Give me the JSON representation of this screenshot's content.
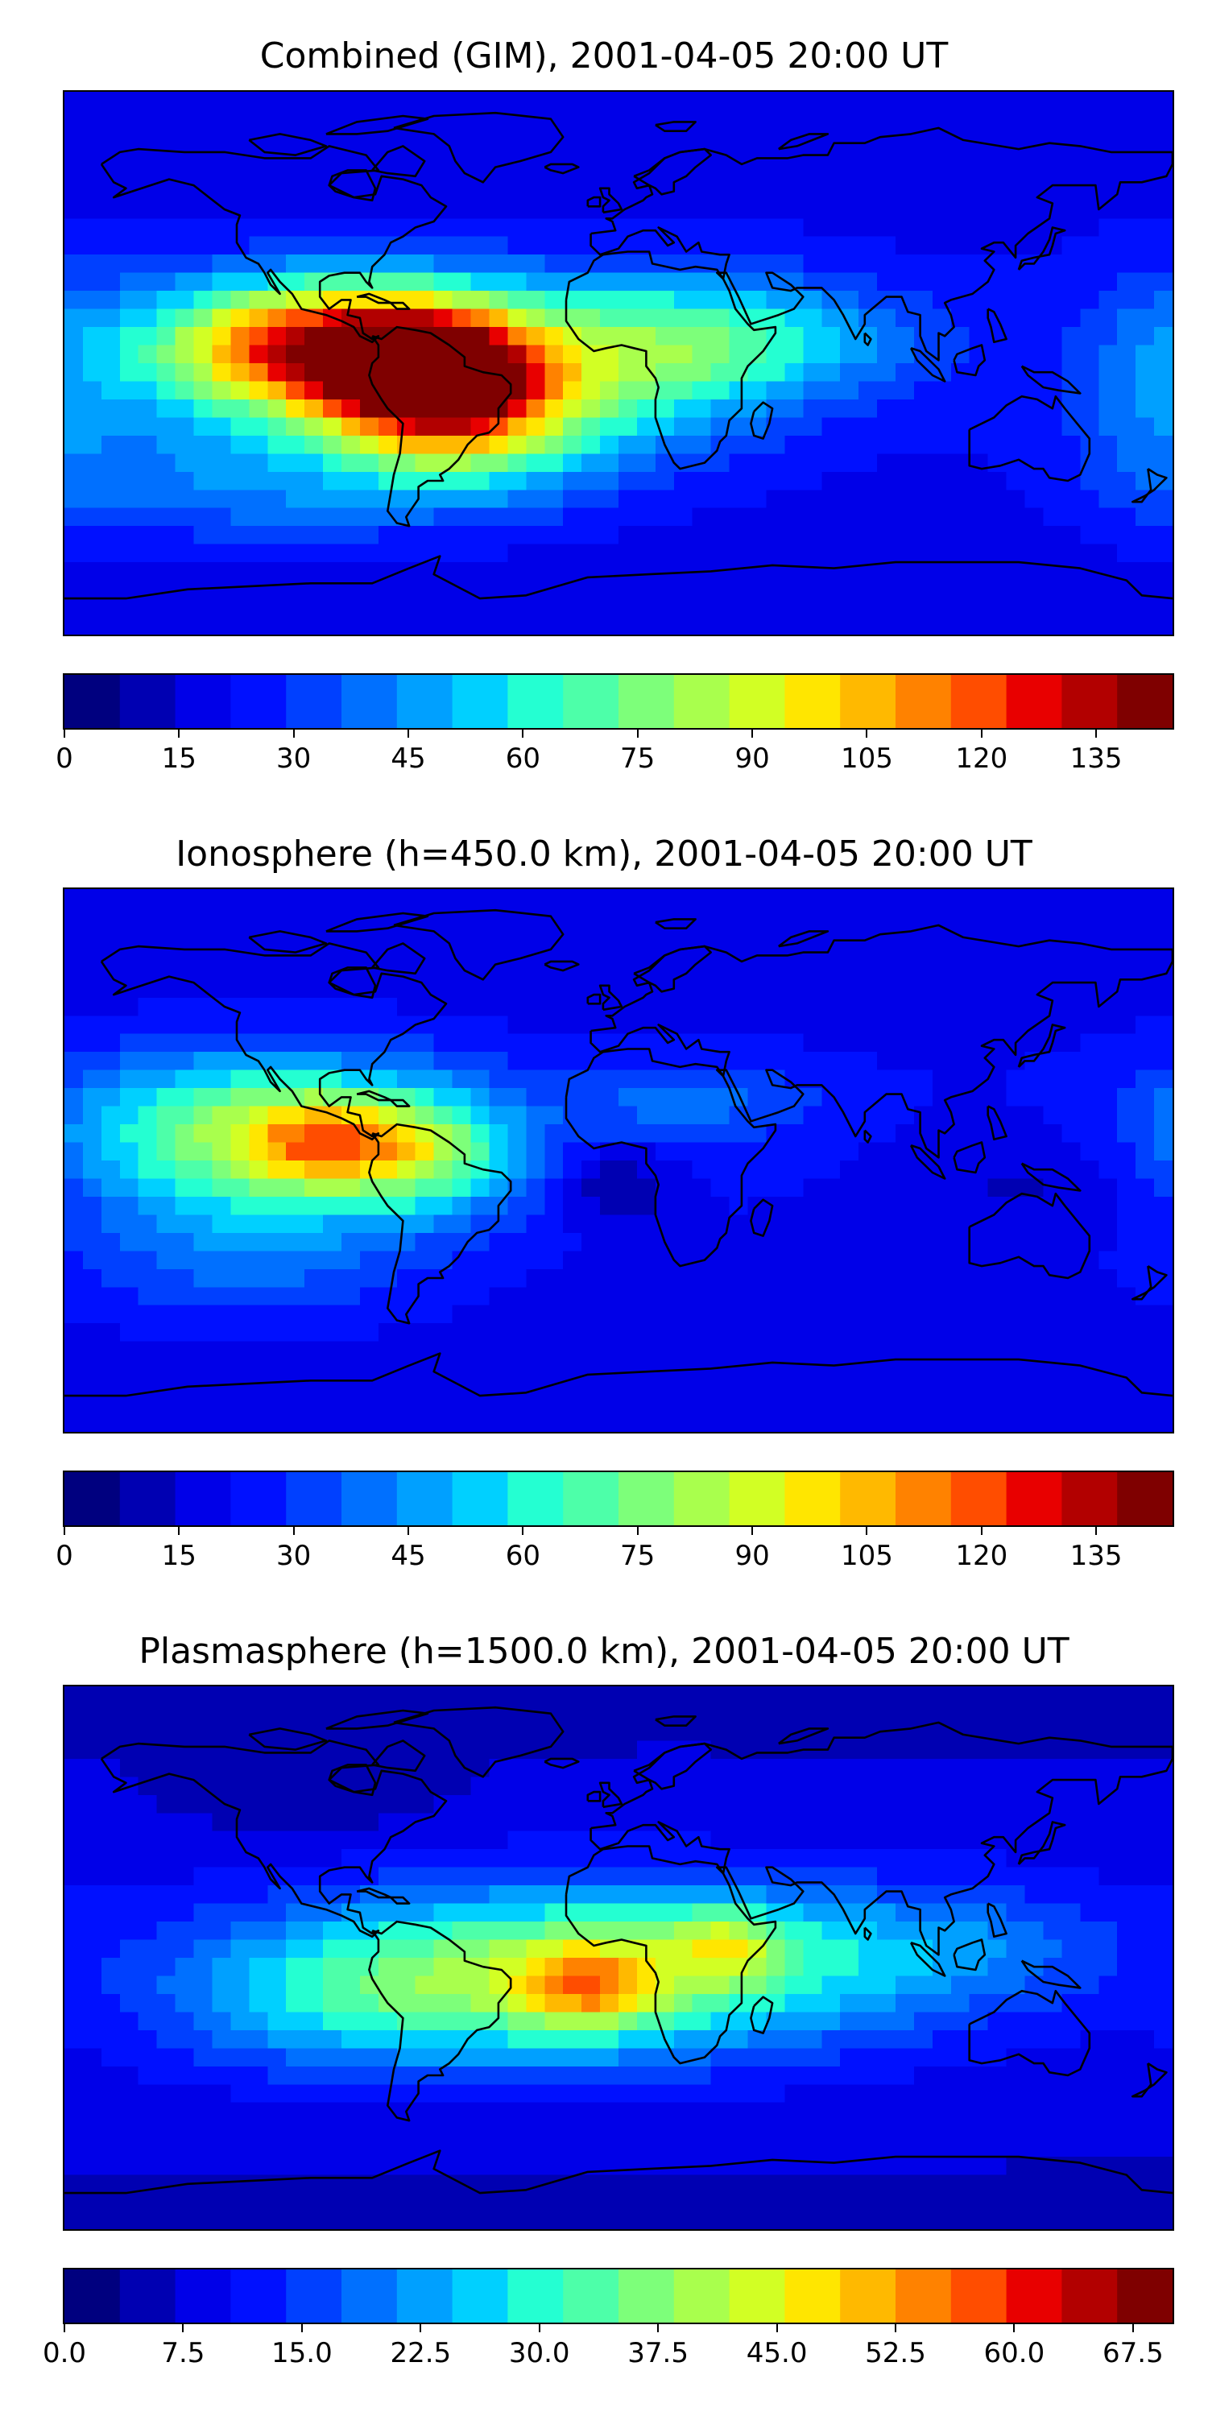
{
  "colormap": [
    "#00007f",
    "#0000b2",
    "#0000e8",
    "#0010ff",
    "#0040ff",
    "#0070ff",
    "#00a0ff",
    "#00d0ff",
    "#24ffd2",
    "#4dffa9",
    "#7dff7a",
    "#a9ff4d",
    "#d2ff24",
    "#ffe600",
    "#ffb900",
    "#ff8200",
    "#ff4d00",
    "#e80000",
    "#b20000",
    "#7f0000"
  ],
  "panels": [
    {
      "title": "Combined (GIM), 2001-04-05 20:00 UT",
      "colorbar": {
        "min": 0,
        "max": 145,
        "ticks": [
          0,
          15,
          30,
          45,
          60,
          75,
          90,
          105,
          120,
          135
        ],
        "tick_labels": [
          "0",
          "15",
          "30",
          "45",
          "60",
          "75",
          "90",
          "105",
          "120",
          "135"
        ]
      },
      "field": {
        "base": 22,
        "blobs": [
          {
            "lon": -100,
            "lat": 5,
            "value": 105,
            "spread_lon": 38,
            "spread_lat": 16
          },
          {
            "lon": -60,
            "lat": -5,
            "value": 90,
            "spread_lon": 25,
            "spread_lat": 17
          },
          {
            "lon": -45,
            "lat": -18,
            "value": 40,
            "spread_lon": 30,
            "spread_lat": 20
          },
          {
            "lon": 5,
            "lat": 0,
            "value": 35,
            "spread_lon": 35,
            "spread_lat": 22
          },
          {
            "lon": 45,
            "lat": 8,
            "value": 30,
            "spread_lon": 40,
            "spread_lat": 14
          },
          {
            "lon": -120,
            "lat": -40,
            "value": 25,
            "spread_lon": 45,
            "spread_lat": 15
          },
          {
            "lon": 175,
            "lat": -10,
            "value": 18,
            "spread_lon": 20,
            "spread_lat": 30
          }
        ]
      }
    },
    {
      "title": "Ionosphere  (h=450.0 km), 2001-04-05 20:00 UT",
      "colorbar": {
        "min": 0,
        "max": 145,
        "ticks": [
          0,
          15,
          30,
          45,
          60,
          75,
          90,
          105,
          120,
          135
        ],
        "tick_labels": [
          "0",
          "15",
          "30",
          "45",
          "60",
          "75",
          "90",
          "105",
          "120",
          "135"
        ]
      },
      "field": {
        "base": 22,
        "blobs": [
          {
            "lon": -115,
            "lat": 10,
            "value": 60,
            "spread_lon": 45,
            "spread_lat": 18
          },
          {
            "lon": -95,
            "lat": 5,
            "value": 40,
            "spread_lon": 18,
            "spread_lat": 10
          },
          {
            "lon": -60,
            "lat": 2,
            "value": 35,
            "spread_lon": 20,
            "spread_lat": 14
          },
          {
            "lon": -120,
            "lat": -30,
            "value": 20,
            "spread_lon": 40,
            "spread_lat": 18
          },
          {
            "lon": 25,
            "lat": 20,
            "value": 18,
            "spread_lon": 30,
            "spread_lat": 10
          },
          {
            "lon": 0,
            "lat": -8,
            "value": -15,
            "spread_lon": 12,
            "spread_lat": 9
          },
          {
            "lon": 140,
            "lat": -8,
            "value": -10,
            "spread_lon": 30,
            "spread_lat": 15
          }
        ]
      }
    },
    {
      "title": "Plasmasphere (h=1500.0 km), 2001-04-05 20:00 UT",
      "colorbar": {
        "min": 0,
        "max": 70,
        "ticks": [
          0,
          7.5,
          15,
          22.5,
          30,
          37.5,
          45,
          52.5,
          60,
          67.5
        ],
        "tick_labels": [
          "0.0",
          "7.5",
          "15.0",
          "22.5",
          "30.0",
          "37.5",
          "45.0",
          "52.5",
          "60.0",
          "67.5"
        ]
      },
      "field": {
        "base": 9,
        "blobs": [
          {
            "lon": -10,
            "lat": -5,
            "value": 30,
            "spread_lon": 70,
            "spread_lat": 20
          },
          {
            "lon": -10,
            "lat": -10,
            "value": 18,
            "spread_lon": 15,
            "spread_lat": 10
          },
          {
            "lon": 35,
            "lat": 5,
            "value": 14,
            "spread_lon": 15,
            "spread_lat": 9
          },
          {
            "lon": -90,
            "lat": -15,
            "value": 10,
            "spread_lon": 45,
            "spread_lat": 18
          },
          {
            "lon": 110,
            "lat": 5,
            "value": 8,
            "spread_lon": 40,
            "spread_lat": 15
          },
          {
            "lon": -100,
            "lat": 55,
            "value": -4,
            "spread_lon": 30,
            "spread_lat": 12
          }
        ]
      }
    }
  ]
}
